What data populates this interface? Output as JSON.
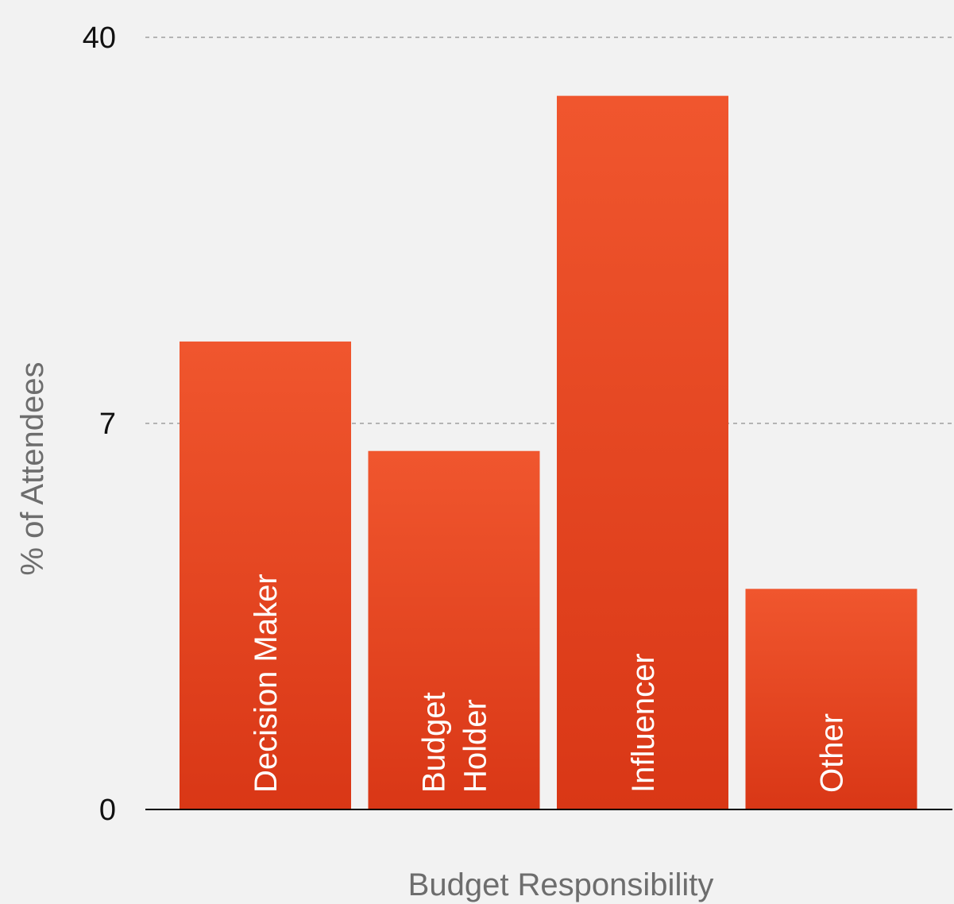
{
  "chart_data": {
    "type": "bar",
    "title": "",
    "xlabel": "Budget Responsibility",
    "ylabel": "% of Attendees",
    "categories": [
      "Decision Maker",
      "Budget Holder",
      "Influencer",
      "Other"
    ],
    "category_lines": [
      [
        "Decision Maker"
      ],
      [
        "Budget",
        "Holder"
      ],
      [
        "Influencer"
      ],
      [
        "Other"
      ]
    ],
    "values": [
      14,
      6.5,
      35,
      4
    ],
    "y_ticks": [
      0,
      7,
      40
    ],
    "y_tick_labels": [
      "0",
      "7",
      "40"
    ],
    "y_scale": "piecewise-linear between printed ticks",
    "grid": "dashed horizontal at 7 and 40",
    "legend": "none",
    "colors": {
      "bar_top": "#f0562e",
      "bar_bottom": "#d93716",
      "grid": "#a0a0a0",
      "axis": "#000000",
      "background": "#f2f2f2"
    }
  }
}
